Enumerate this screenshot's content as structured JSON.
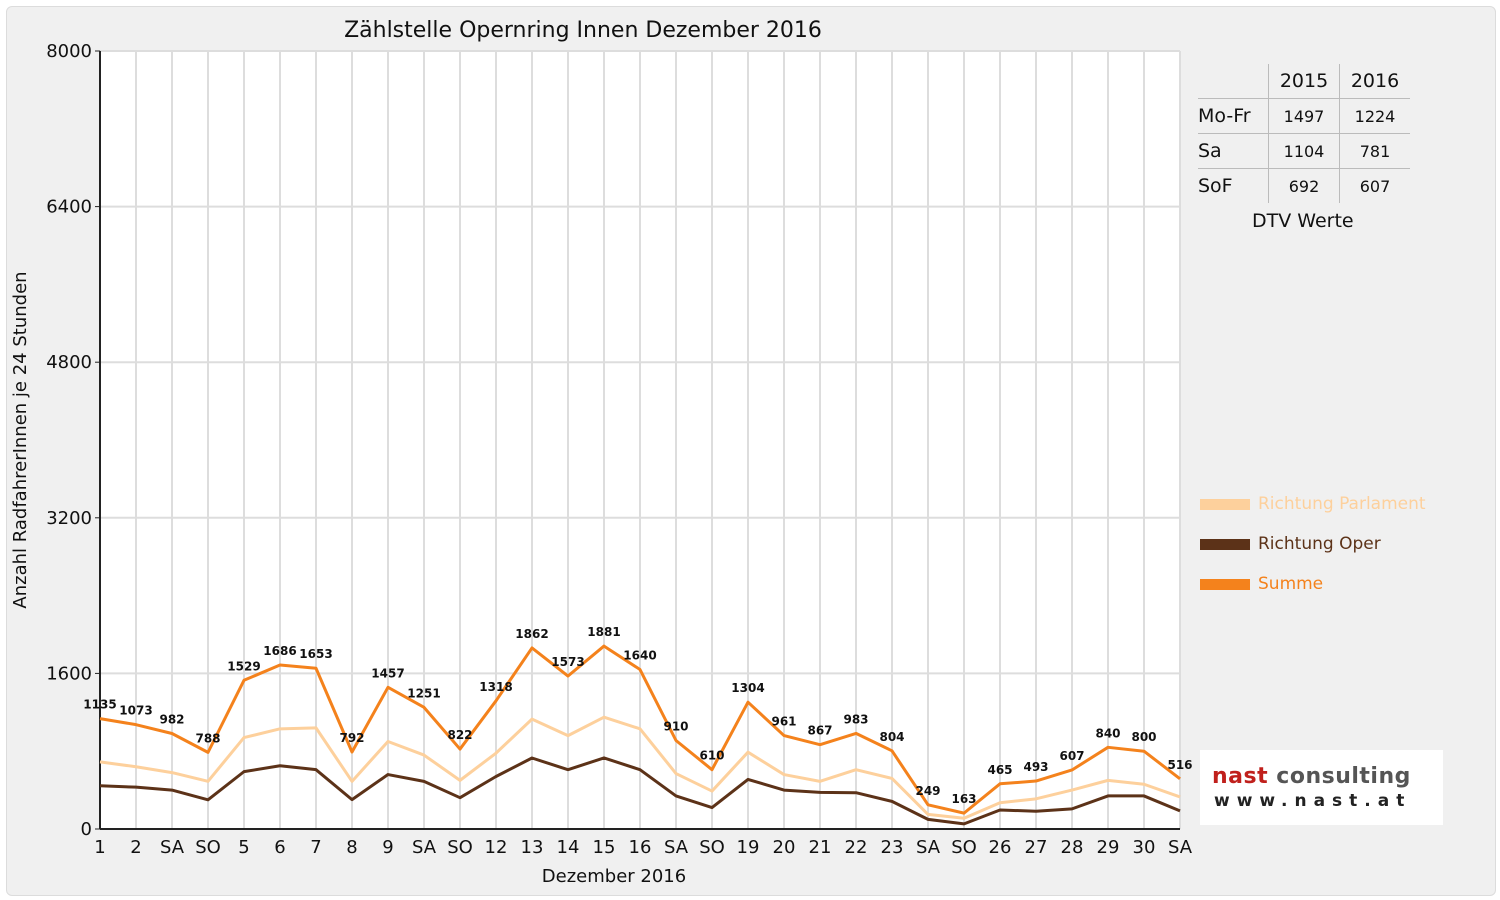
{
  "chart_data": {
    "type": "line",
    "title": "Zählstelle Opernring Innen Dezember 2016",
    "xlabel": "Dezember 2016",
    "ylabel": "Anzahl RadfahrerInnen je 24 Stunden",
    "ylim": [
      0,
      8000
    ],
    "yticks": [
      "0",
      "1600",
      "3200",
      "4800",
      "6400",
      "8000"
    ],
    "grid": true,
    "legend_position": "right",
    "categories": [
      "1",
      "2",
      "SA",
      "SO",
      "5",
      "6",
      "7",
      "8",
      "9",
      "SA",
      "SO",
      "12",
      "13",
      "14",
      "15",
      "16",
      "SA",
      "SO",
      "19",
      "20",
      "21",
      "22",
      "23",
      "SA",
      "SO",
      "26",
      "27",
      "28",
      "29",
      "30",
      "SA"
    ],
    "red_categories": [
      3,
      7,
      10,
      17,
      24,
      25
    ],
    "series": [
      {
        "name": "Richtung Parlament",
        "color": "#fdd09c",
        "values": [
          690,
          640,
          580,
          490,
          940,
          1030,
          1040,
          490,
          900,
          760,
          500,
          780,
          1130,
          960,
          1150,
          1030,
          570,
          390,
          790,
          560,
          490,
          610,
          520,
          150,
          110,
          270,
          310,
          400,
          500,
          460,
          330
        ]
      },
      {
        "name": "Richtung Oper",
        "color": "#5c3218",
        "values": [
          445,
          430,
          400,
          300,
          590,
          650,
          610,
          302,
          560,
          490,
          322,
          540,
          730,
          610,
          731,
          610,
          340,
          220,
          510,
          400,
          377,
          373,
          284,
          99,
          53,
          195,
          183,
          207,
          340,
          340,
          186
        ]
      },
      {
        "name": "Summe",
        "color": "#f4821c",
        "values": [
          1135,
          1073,
          982,
          788,
          1529,
          1686,
          1653,
          792,
          1457,
          1251,
          822,
          1318,
          1862,
          1573,
          1881,
          1640,
          910,
          610,
          1304,
          961,
          867,
          983,
          804,
          249,
          163,
          465,
          493,
          607,
          840,
          800,
          516
        ]
      }
    ],
    "data_labels": [
      "1135",
      "1073",
      "982",
      "788",
      "1529",
      "1686",
      "1653",
      "792",
      "1457",
      "1251",
      "822",
      "1318",
      "1862",
      "1573",
      "1881",
      "1640",
      "910",
      "610",
      "1304",
      "961",
      "867",
      "983",
      "804",
      "249",
      "163",
      "465",
      "493",
      "607",
      "840",
      "800",
      "516"
    ]
  },
  "dtv": {
    "years": [
      "2015",
      "2016"
    ],
    "rows": [
      {
        "label": "Mo-Fr",
        "v2015": "1497",
        "v2016": "1224"
      },
      {
        "label": "Sa",
        "v2015": "1104",
        "v2016": "781"
      },
      {
        "label": "SoF",
        "v2015": "692",
        "v2016": "607"
      }
    ],
    "caption": "DTV Werte"
  },
  "legend": [
    {
      "label": "Richtung Parlament",
      "color": "#fdd09c"
    },
    {
      "label": "Richtung Oper",
      "color": "#5c3218"
    },
    {
      "label": "Summe",
      "color": "#f4821c"
    }
  ],
  "logo": {
    "name_part1": "nast",
    "name_part2": "consulting",
    "url": "www.nast.at"
  }
}
